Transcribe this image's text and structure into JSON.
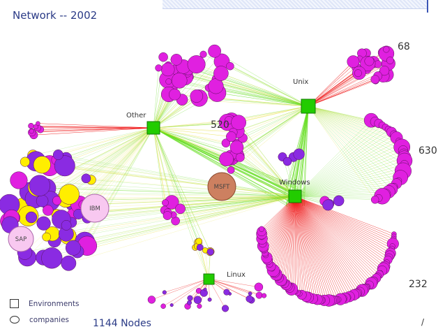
{
  "slide": {
    "title": "Network -- 2002"
  },
  "hubs": [
    {
      "id": "other",
      "label": "Other"
    },
    {
      "id": "unix",
      "label": "Unix"
    },
    {
      "id": "windows",
      "label": "Windows"
    },
    {
      "id": "linux",
      "label": "Linux"
    }
  ],
  "counts": [
    "68",
    "520",
    "630",
    "232"
  ],
  "company_labels": [
    "MSFT",
    "IBM",
    "SAP"
  ],
  "legend": {
    "environments": "Environments",
    "companies": "companies"
  },
  "footer": {
    "nodes": "1144 Nodes",
    "corner_mark": "/"
  },
  "colors": {
    "hub": "#22cc00",
    "company_magenta": "#e020e0",
    "company_purple": "#8a2be2",
    "company_yellow": "#ffee00",
    "edge_red": "#ee1111",
    "edge_green": "#66dd22",
    "edge_yellow": "#e8e040",
    "msft": "#cd8060",
    "ibm_sap": "#f8c8f0"
  }
}
